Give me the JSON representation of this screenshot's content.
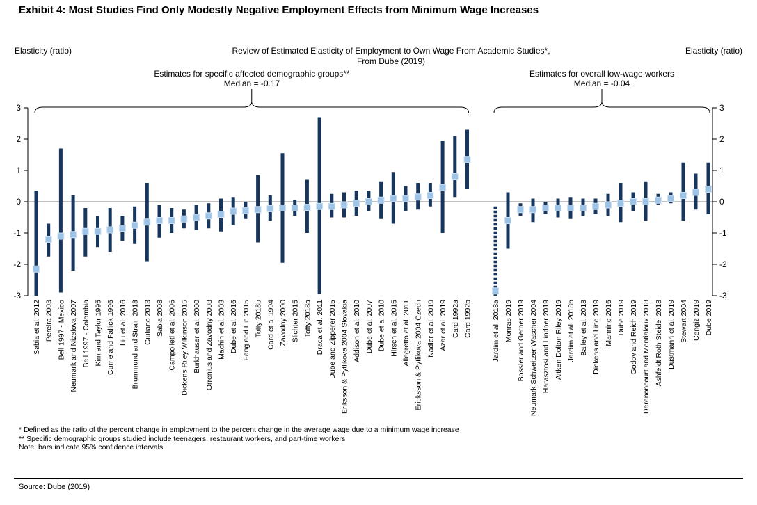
{
  "header": {
    "title": "Exhibit 4: Most Studies Find Only Modestly Negative Employment Effects from Minimum Wage Increases"
  },
  "chart": {
    "left_axis_title": "Elasticity (ratio)",
    "right_axis_title": "Elasticity (ratio)",
    "title_line1": "Review of Estimated Elasticity of Employment to Own Wage From Academic Studies*,",
    "title_line2": "From Dube (2019)"
  },
  "footnotes": {
    "line1": "*  Defined as the ratio of the percent change in employment to the percent change in the average wage due to a minimum wage increase",
    "line2": "** Specific demographic groups studied include teenagers, restaurant workers, and part-time workers",
    "line3": "Note: bars indicate 95% confidence intervals."
  },
  "footer": {
    "source": "Source: Dube (2019)"
  },
  "chart_data": {
    "type": "bar",
    "variant": "confidence-interval-range-with-point-estimates",
    "title": "Review of Estimated Elasticity of Employment to Own Wage From Academic Studies*, From Dube (2019)",
    "ylabel": "Elasticity (ratio)",
    "ylim": [
      -3,
      3
    ],
    "yticks": [
      3,
      2,
      1,
      0,
      -1,
      -2,
      -3
    ],
    "grid": false,
    "colors": {
      "ci_bar": "#17365d",
      "point": "#9dc3e6",
      "point_edge": "#cfe2f3",
      "zero_line": "#808080"
    },
    "groups": [
      {
        "label": "Estimates for specific affected demographic groups**",
        "median_label": "Median = -0.17",
        "median": -0.17,
        "studies": [
          {
            "name": "Sabia et al. 2012",
            "point": -2.15,
            "lo": -3.0,
            "hi": 0.35
          },
          {
            "name": "Pereira 2003",
            "point": -1.2,
            "lo": -1.75,
            "hi": -0.7
          },
          {
            "name": "Bell 1997 - Mexico",
            "point": -1.1,
            "lo": -2.9,
            "hi": 1.7
          },
          {
            "name": "Neumark and Nizalova 2007",
            "point": -1.05,
            "lo": -2.2,
            "hi": 0.2
          },
          {
            "name": "Bell 1997 - Colombia",
            "point": -0.95,
            "lo": -1.75,
            "hi": -0.2
          },
          {
            "name": "Kim and Taylor 1995",
            "point": -0.95,
            "lo": -1.45,
            "hi": -0.45
          },
          {
            "name": "Currie and Fallick 1996",
            "point": -0.9,
            "lo": -1.6,
            "hi": -0.2
          },
          {
            "name": "Liu et al. 2016",
            "point": -0.85,
            "lo": -1.25,
            "hi": -0.45
          },
          {
            "name": "Brummund and Strain 2018",
            "point": -0.75,
            "lo": -1.35,
            "hi": -0.15
          },
          {
            "name": "Giuliano 2013",
            "point": -0.65,
            "lo": -1.9,
            "hi": 0.6
          },
          {
            "name": "Sabia 2008",
            "point": -0.6,
            "lo": -1.15,
            "hi": -0.1
          },
          {
            "name": "Campolieti et al. 2006",
            "point": -0.6,
            "lo": -1.0,
            "hi": -0.2
          },
          {
            "name": "Dickens Riley Wilkinson 2015",
            "point": -0.55,
            "lo": -0.85,
            "hi": -0.25
          },
          {
            "name": "Burkhauser et al. 2000",
            "point": -0.5,
            "lo": -0.9,
            "hi": -0.1
          },
          {
            "name": "Orrenius and Zavodny 2008",
            "point": -0.45,
            "lo": -0.85,
            "hi": -0.05
          },
          {
            "name": "Machin et al. 2003",
            "point": -0.4,
            "lo": -0.95,
            "hi": 0.1
          },
          {
            "name": "Dube et al. 2016",
            "point": -0.3,
            "lo": -0.75,
            "hi": 0.15
          },
          {
            "name": "Fang and Lin 2015",
            "point": -0.28,
            "lo": -0.55,
            "hi": 0.0
          },
          {
            "name": "Totty 2018b",
            "point": -0.25,
            "lo": -1.3,
            "hi": 0.85
          },
          {
            "name": "Card et al 1994",
            "point": -0.22,
            "lo": -0.6,
            "hi": 0.2
          },
          {
            "name": "Zavodny 2000",
            "point": -0.2,
            "lo": -1.95,
            "hi": 1.55
          },
          {
            "name": "Slichter 2015",
            "point": -0.2,
            "lo": -0.45,
            "hi": 0.05
          },
          {
            "name": "Totty 2018a",
            "point": -0.18,
            "lo": -1.0,
            "hi": 0.7
          },
          {
            "name": "Draca et al. 2011",
            "point": -0.15,
            "lo": -2.95,
            "hi": 2.7
          },
          {
            "name": "Dube and Zipperer 2015",
            "point": -0.15,
            "lo": -0.5,
            "hi": 0.25
          },
          {
            "name": "Eriksson & Pytlikova 2004 Slovakia",
            "point": -0.1,
            "lo": -0.5,
            "hi": 0.3
          },
          {
            "name": "Addison et al. 2010",
            "point": -0.05,
            "lo": -0.45,
            "hi": 0.35
          },
          {
            "name": "Dube et al. 2007",
            "point": 0.0,
            "lo": -0.3,
            "hi": 0.35
          },
          {
            "name": "Dube et al 2010",
            "point": 0.05,
            "lo": -0.55,
            "hi": 0.65
          },
          {
            "name": "Hirsch et al. 2015",
            "point": 0.1,
            "lo": -0.7,
            "hi": 0.95
          },
          {
            "name": "Allegretto et al. 2011",
            "point": 0.1,
            "lo": -0.3,
            "hi": 0.5
          },
          {
            "name": "Ericksson & Pytlikova 2004 Czech",
            "point": 0.15,
            "lo": -0.25,
            "hi": 0.6
          },
          {
            "name": "Nadler et al. 2019",
            "point": 0.2,
            "lo": -0.15,
            "hi": 0.6
          },
          {
            "name": "Azar et al. 2019",
            "point": 0.45,
            "lo": -1.0,
            "hi": 1.95
          },
          {
            "name": "Card 1992a",
            "point": 0.8,
            "lo": 0.15,
            "hi": 2.1
          },
          {
            "name": "Card 1992b",
            "point": 1.35,
            "lo": 0.4,
            "hi": 2.3
          }
        ]
      },
      {
        "label": "Estimates for overall low-wage workers",
        "median_label": "Median = -0.04",
        "median": -0.04,
        "studies": [
          {
            "name": "Jardim et al. 2018a",
            "point": -2.85,
            "lo": -3.0,
            "hi": -0.15,
            "striped": true
          },
          {
            "name": "Monras 2019",
            "point": -0.6,
            "lo": -1.5,
            "hi": 0.3
          },
          {
            "name": "Bossler and Gerner 2019",
            "point": -0.25,
            "lo": -0.45,
            "hi": -0.05
          },
          {
            "name": "Neumark Schweitzer Wascher 2004",
            "point": -0.25,
            "lo": -0.65,
            "hi": 0.1
          },
          {
            "name": "Harasztosi and Lindner 2019",
            "point": -0.2,
            "lo": -0.4,
            "hi": 0.0
          },
          {
            "name": "Aitken Dolton Riley 2019",
            "point": -0.2,
            "lo": -0.5,
            "hi": 0.1
          },
          {
            "name": "Jardim et al. 2018b",
            "point": -0.2,
            "lo": -0.55,
            "hi": 0.15
          },
          {
            "name": "Bailey et al. 2018",
            "point": -0.2,
            "lo": -0.45,
            "hi": 0.1
          },
          {
            "name": "Dickens and Lind 2019",
            "point": -0.15,
            "lo": -0.4,
            "hi": 0.1
          },
          {
            "name": "Manning 2016",
            "point": -0.1,
            "lo": -0.45,
            "hi": 0.25
          },
          {
            "name": "Dube 2019",
            "point": -0.05,
            "lo": -0.65,
            "hi": 0.6
          },
          {
            "name": "Godoy and Reich 2019",
            "point": 0.0,
            "lo": -0.3,
            "hi": 0.3
          },
          {
            "name": "Derenoncourt and Montialoux 2018",
            "point": 0.0,
            "lo": -0.6,
            "hi": 0.65
          },
          {
            "name": "Ashfeldt Roth Steidel 2018",
            "point": 0.05,
            "lo": -0.1,
            "hi": 0.25
          },
          {
            "name": "Dustmann et al. 2019",
            "point": 0.1,
            "lo": -0.05,
            "hi": 0.3
          },
          {
            "name": "Stewart 2004",
            "point": 0.2,
            "lo": -0.6,
            "hi": 1.25
          },
          {
            "name": "Cengiz 2019",
            "point": 0.3,
            "lo": -0.25,
            "hi": 0.9
          },
          {
            "name": "Dube 2019",
            "point": 0.4,
            "lo": -0.4,
            "hi": 1.25
          }
        ]
      }
    ]
  }
}
